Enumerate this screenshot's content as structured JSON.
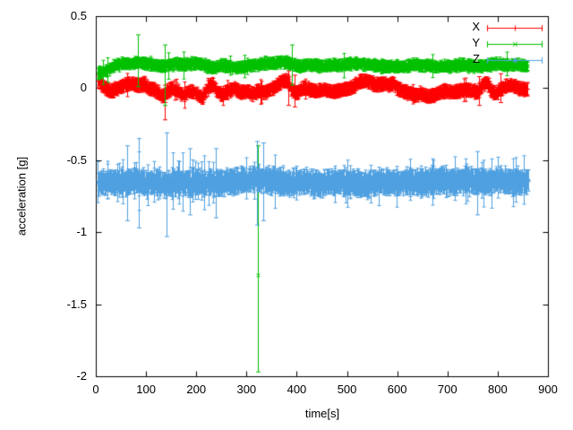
{
  "chart_data": {
    "type": "scatter",
    "style": "errorbars-with-points",
    "title": "",
    "xlabel": "time[s]",
    "ylabel": "acceleration [g]",
    "xlim": [
      0,
      900
    ],
    "ylim": [
      -2,
      0.5
    ],
    "grid": false,
    "legend_position": "top-right",
    "axis_color": "#000000",
    "xticks": [
      0,
      100,
      200,
      300,
      400,
      500,
      600,
      700,
      800,
      900
    ],
    "xtick_labels": [
      "0",
      "100",
      "200",
      "300",
      "400",
      "500",
      "600",
      "700",
      "800",
      "900"
    ],
    "yticks": [
      0.5,
      0,
      -0.5,
      -1,
      -1.5,
      -2
    ],
    "ytick_labels": [
      "0.5",
      "0",
      "-0.5",
      "-1",
      "-1.5",
      "-2"
    ],
    "seed": 9,
    "series": [
      {
        "name": "X",
        "color": "#ff0000",
        "marker": "plus",
        "t_start": 4,
        "t_end": 860,
        "dt": 1.2,
        "noise": 0.008,
        "err_base": 0.03,
        "err_var": 0.02,
        "err_spike_prob": 0.02,
        "err_spike_extra": 0.05,
        "baseline": [
          [
            4,
            0.05
          ],
          [
            12,
            0.02
          ],
          [
            20,
            -0.01
          ],
          [
            30,
            -0.02
          ],
          [
            45,
            0.0
          ],
          [
            55,
            0.02
          ],
          [
            70,
            0.03
          ],
          [
            85,
            0.02
          ],
          [
            95,
            0.03
          ],
          [
            105,
            0.0
          ],
          [
            120,
            -0.02
          ],
          [
            132,
            -0.06
          ],
          [
            140,
            -0.03
          ],
          [
            150,
            0.0
          ],
          [
            163,
            -0.02
          ],
          [
            175,
            -0.05
          ],
          [
            185,
            -0.02
          ],
          [
            200,
            -0.04
          ],
          [
            212,
            -0.07
          ],
          [
            222,
            0.0
          ],
          [
            232,
            0.03
          ],
          [
            240,
            -0.02
          ],
          [
            252,
            -0.05
          ],
          [
            262,
            -0.02
          ],
          [
            275,
            0.0
          ],
          [
            287,
            -0.03
          ],
          [
            300,
            -0.02
          ],
          [
            312,
            -0.04
          ],
          [
            322,
            -0.02
          ],
          [
            335,
            -0.03
          ],
          [
            347,
            -0.01
          ],
          [
            360,
            0.02
          ],
          [
            370,
            0.05
          ],
          [
            382,
            0.05
          ],
          [
            390,
            -0.02
          ],
          [
            400,
            -0.03
          ],
          [
            412,
            0.0
          ],
          [
            425,
            -0.01
          ],
          [
            440,
            -0.02
          ],
          [
            455,
            -0.01
          ],
          [
            468,
            -0.03
          ],
          [
            480,
            -0.02
          ],
          [
            495,
            -0.01
          ],
          [
            505,
            0.0
          ],
          [
            515,
            0.02
          ],
          [
            525,
            0.04
          ],
          [
            535,
            0.05
          ],
          [
            548,
            0.04
          ],
          [
            558,
            0.02
          ],
          [
            572,
            0.03
          ],
          [
            585,
            0.02
          ],
          [
            592,
            0.04
          ],
          [
            598,
            0.0
          ],
          [
            610,
            -0.02
          ],
          [
            622,
            -0.03
          ],
          [
            635,
            -0.05
          ],
          [
            648,
            -0.04
          ],
          [
            660,
            -0.06
          ],
          [
            672,
            -0.05
          ],
          [
            685,
            -0.03
          ],
          [
            695,
            -0.02
          ],
          [
            708,
            -0.03
          ],
          [
            722,
            -0.02
          ],
          [
            735,
            -0.01
          ],
          [
            748,
            -0.02
          ],
          [
            760,
            -0.03
          ],
          [
            770,
            0.02
          ],
          [
            778,
            0.04
          ],
          [
            786,
            -0.02
          ],
          [
            795,
            -0.04
          ],
          [
            805,
            -0.01
          ],
          [
            815,
            0.01
          ],
          [
            828,
            0.02
          ],
          [
            840,
            0.0
          ],
          [
            852,
            -0.01
          ],
          [
            860,
            -0.01
          ]
        ],
        "outliers": [
          {
            "t": 137,
            "y": -0.1,
            "ylow": -0.22,
            "yhigh": 0.02
          },
          {
            "t": 384,
            "y": 0.0,
            "ylow": -0.12,
            "yhigh": 0.12
          },
          {
            "t": 395,
            "y": -0.02,
            "ylow": -0.13,
            "yhigh": 0.09
          },
          {
            "t": 763,
            "y": -0.02,
            "ylow": -0.12,
            "yhigh": 0.08
          },
          {
            "t": 806,
            "y": 0.0,
            "ylow": -0.1,
            "yhigh": 0.1
          }
        ]
      },
      {
        "name": "Y",
        "color": "#00c000",
        "marker": "cross",
        "t_start": 4,
        "t_end": 860,
        "dt": 1.2,
        "noise": 0.008,
        "err_base": 0.025,
        "err_var": 0.02,
        "err_spike_prob": 0.02,
        "err_spike_extra": 0.06,
        "baseline": [
          [
            4,
            0.1
          ],
          [
            15,
            0.11
          ],
          [
            25,
            0.13
          ],
          [
            40,
            0.16
          ],
          [
            55,
            0.17
          ],
          [
            70,
            0.17
          ],
          [
            85,
            0.18
          ],
          [
            100,
            0.17
          ],
          [
            115,
            0.16
          ],
          [
            130,
            0.15
          ],
          [
            145,
            0.16
          ],
          [
            160,
            0.17
          ],
          [
            175,
            0.16
          ],
          [
            190,
            0.17
          ],
          [
            205,
            0.17
          ],
          [
            220,
            0.15
          ],
          [
            235,
            0.14
          ],
          [
            250,
            0.16
          ],
          [
            265,
            0.15
          ],
          [
            280,
            0.14
          ],
          [
            295,
            0.15
          ],
          [
            310,
            0.16
          ],
          [
            322,
            0.16
          ],
          [
            335,
            0.17
          ],
          [
            350,
            0.17
          ],
          [
            365,
            0.18
          ],
          [
            380,
            0.18
          ],
          [
            392,
            0.16
          ],
          [
            405,
            0.15
          ],
          [
            420,
            0.16
          ],
          [
            435,
            0.16
          ],
          [
            450,
            0.15
          ],
          [
            465,
            0.16
          ],
          [
            480,
            0.16
          ],
          [
            495,
            0.16
          ],
          [
            510,
            0.17
          ],
          [
            525,
            0.17
          ],
          [
            540,
            0.16
          ],
          [
            555,
            0.16
          ],
          [
            570,
            0.15
          ],
          [
            585,
            0.15
          ],
          [
            600,
            0.15
          ],
          [
            615,
            0.15
          ],
          [
            630,
            0.16
          ],
          [
            645,
            0.16
          ],
          [
            660,
            0.16
          ],
          [
            675,
            0.15
          ],
          [
            690,
            0.15
          ],
          [
            705,
            0.15
          ],
          [
            720,
            0.16
          ],
          [
            735,
            0.16
          ],
          [
            750,
            0.15
          ],
          [
            765,
            0.15
          ],
          [
            780,
            0.16
          ],
          [
            795,
            0.17
          ],
          [
            810,
            0.16
          ],
          [
            825,
            0.16
          ],
          [
            840,
            0.16
          ],
          [
            852,
            0.15
          ],
          [
            860,
            0.15
          ]
        ],
        "outliers": [
          {
            "t": 84,
            "y": 0.19,
            "ylow": 0.01,
            "yhigh": 0.37
          },
          {
            "t": 138,
            "y": 0.16,
            "ylow": -0.12,
            "yhigh": 0.3
          },
          {
            "t": 322,
            "y": -1.3,
            "ylow": -1.97,
            "yhigh": -0.4
          },
          {
            "t": 390,
            "y": 0.17,
            "ylow": 0.02,
            "yhigh": 0.3
          }
        ]
      },
      {
        "name": "Z",
        "color": "#4fa0e0",
        "marker": "star",
        "t_start": 4,
        "t_end": 860,
        "dt": 1.0,
        "noise": 0.022,
        "err_base": 0.05,
        "err_var": 0.04,
        "err_spike_prob": 0.06,
        "err_spike_extra": 0.1,
        "early_until": 260,
        "early_prob": 0.05,
        "early_extra": 0.18,
        "baseline": [
          [
            4,
            -0.66
          ],
          [
            20,
            -0.65
          ],
          [
            40,
            -0.66
          ],
          [
            60,
            -0.65
          ],
          [
            80,
            -0.64
          ],
          [
            100,
            -0.66
          ],
          [
            120,
            -0.66
          ],
          [
            140,
            -0.67
          ],
          [
            160,
            -0.65
          ],
          [
            180,
            -0.66
          ],
          [
            200,
            -0.65
          ],
          [
            220,
            -0.66
          ],
          [
            240,
            -0.66
          ],
          [
            260,
            -0.65
          ],
          [
            280,
            -0.65
          ],
          [
            300,
            -0.64
          ],
          [
            315,
            -0.63
          ],
          [
            330,
            -0.63
          ],
          [
            345,
            -0.64
          ],
          [
            360,
            -0.65
          ],
          [
            375,
            -0.66
          ],
          [
            390,
            -0.66
          ],
          [
            405,
            -0.65
          ],
          [
            420,
            -0.65
          ],
          [
            435,
            -0.66
          ],
          [
            450,
            -0.66
          ],
          [
            465,
            -0.65
          ],
          [
            480,
            -0.65
          ],
          [
            495,
            -0.66
          ],
          [
            510,
            -0.66
          ],
          [
            525,
            -0.66
          ],
          [
            540,
            -0.67
          ],
          [
            555,
            -0.66
          ],
          [
            570,
            -0.65
          ],
          [
            585,
            -0.66
          ],
          [
            600,
            -0.66
          ],
          [
            615,
            -0.65
          ],
          [
            630,
            -0.65
          ],
          [
            645,
            -0.65
          ],
          [
            660,
            -0.65
          ],
          [
            675,
            -0.64
          ],
          [
            690,
            -0.64
          ],
          [
            705,
            -0.65
          ],
          [
            720,
            -0.65
          ],
          [
            735,
            -0.64
          ],
          [
            750,
            -0.64
          ],
          [
            765,
            -0.65
          ],
          [
            780,
            -0.65
          ],
          [
            795,
            -0.64
          ],
          [
            810,
            -0.64
          ],
          [
            825,
            -0.65
          ],
          [
            840,
            -0.65
          ],
          [
            852,
            -0.65
          ],
          [
            860,
            -0.65
          ]
        ],
        "outliers": [
          {
            "t": 62,
            "y": -0.66,
            "ylow": -0.92,
            "yhigh": -0.4
          },
          {
            "t": 85,
            "y": -0.66,
            "ylow": -0.97,
            "yhigh": -0.35
          },
          {
            "t": 140,
            "y": -0.67,
            "ylow": -1.03,
            "yhigh": -0.31
          },
          {
            "t": 188,
            "y": -0.65,
            "ylow": -0.88,
            "yhigh": -0.42
          },
          {
            "t": 238,
            "y": -0.66,
            "ylow": -0.9,
            "yhigh": -0.42
          },
          {
            "t": 321,
            "y": -0.66,
            "ylow": -0.95,
            "yhigh": -0.37
          },
          {
            "t": 333,
            "y": -0.65,
            "ylow": -0.92,
            "yhigh": -0.38
          },
          {
            "t": 760,
            "y": -0.65,
            "ylow": -0.88,
            "yhigh": -0.44
          }
        ]
      }
    ]
  }
}
